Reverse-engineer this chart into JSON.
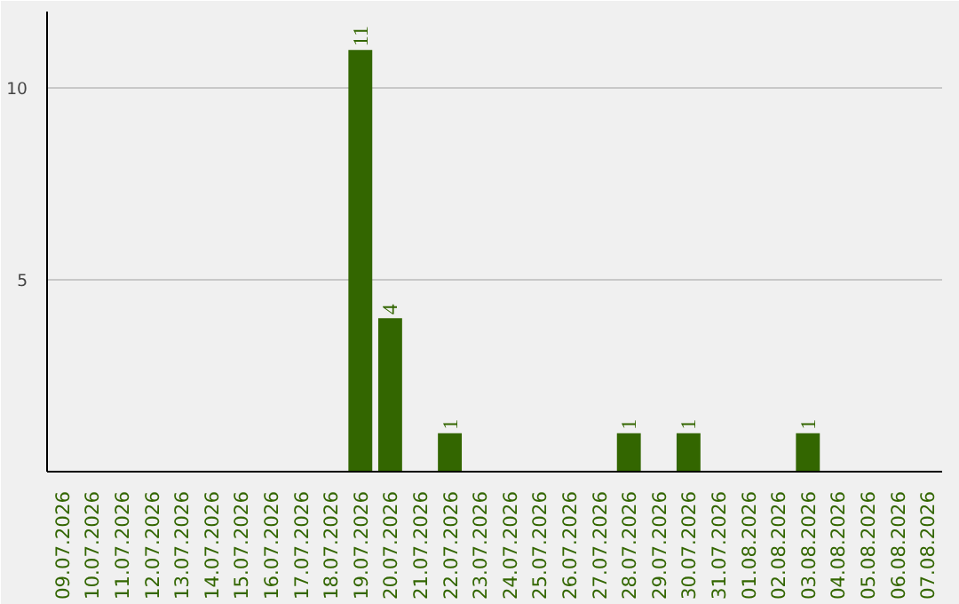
{
  "chart_data": {
    "type": "bar",
    "categories": [
      "09.07.2026",
      "10.07.2026",
      "11.07.2026",
      "12.07.2026",
      "13.07.2026",
      "14.07.2026",
      "15.07.2026",
      "16.07.2026",
      "17.07.2026",
      "18.07.2026",
      "19.07.2026",
      "20.07.2026",
      "21.07.2026",
      "22.07.2026",
      "23.07.2026",
      "24.07.2026",
      "25.07.2026",
      "26.07.2026",
      "27.07.2026",
      "28.07.2026",
      "29.07.2026",
      "30.07.2026",
      "31.07.2026",
      "01.08.2026",
      "02.08.2026",
      "03.08.2026",
      "04.08.2026",
      "05.08.2026",
      "06.08.2026",
      "07.08.2026"
    ],
    "values": [
      0,
      0,
      0,
      0,
      0,
      0,
      0,
      0,
      0,
      0,
      11,
      4,
      0,
      1,
      0,
      0,
      0,
      0,
      0,
      1,
      0,
      1,
      0,
      0,
      0,
      1,
      0,
      0,
      0,
      0
    ],
    "value_labels": [
      null,
      null,
      null,
      null,
      null,
      null,
      null,
      null,
      null,
      null,
      "11",
      "4",
      null,
      "1",
      null,
      null,
      null,
      null,
      null,
      "1",
      null,
      "1",
      null,
      null,
      null,
      "1",
      null,
      null,
      null,
      null
    ],
    "color": "#336600",
    "ylim": [
      0,
      12
    ],
    "yticks": [
      5,
      10
    ],
    "grid": "y"
  }
}
